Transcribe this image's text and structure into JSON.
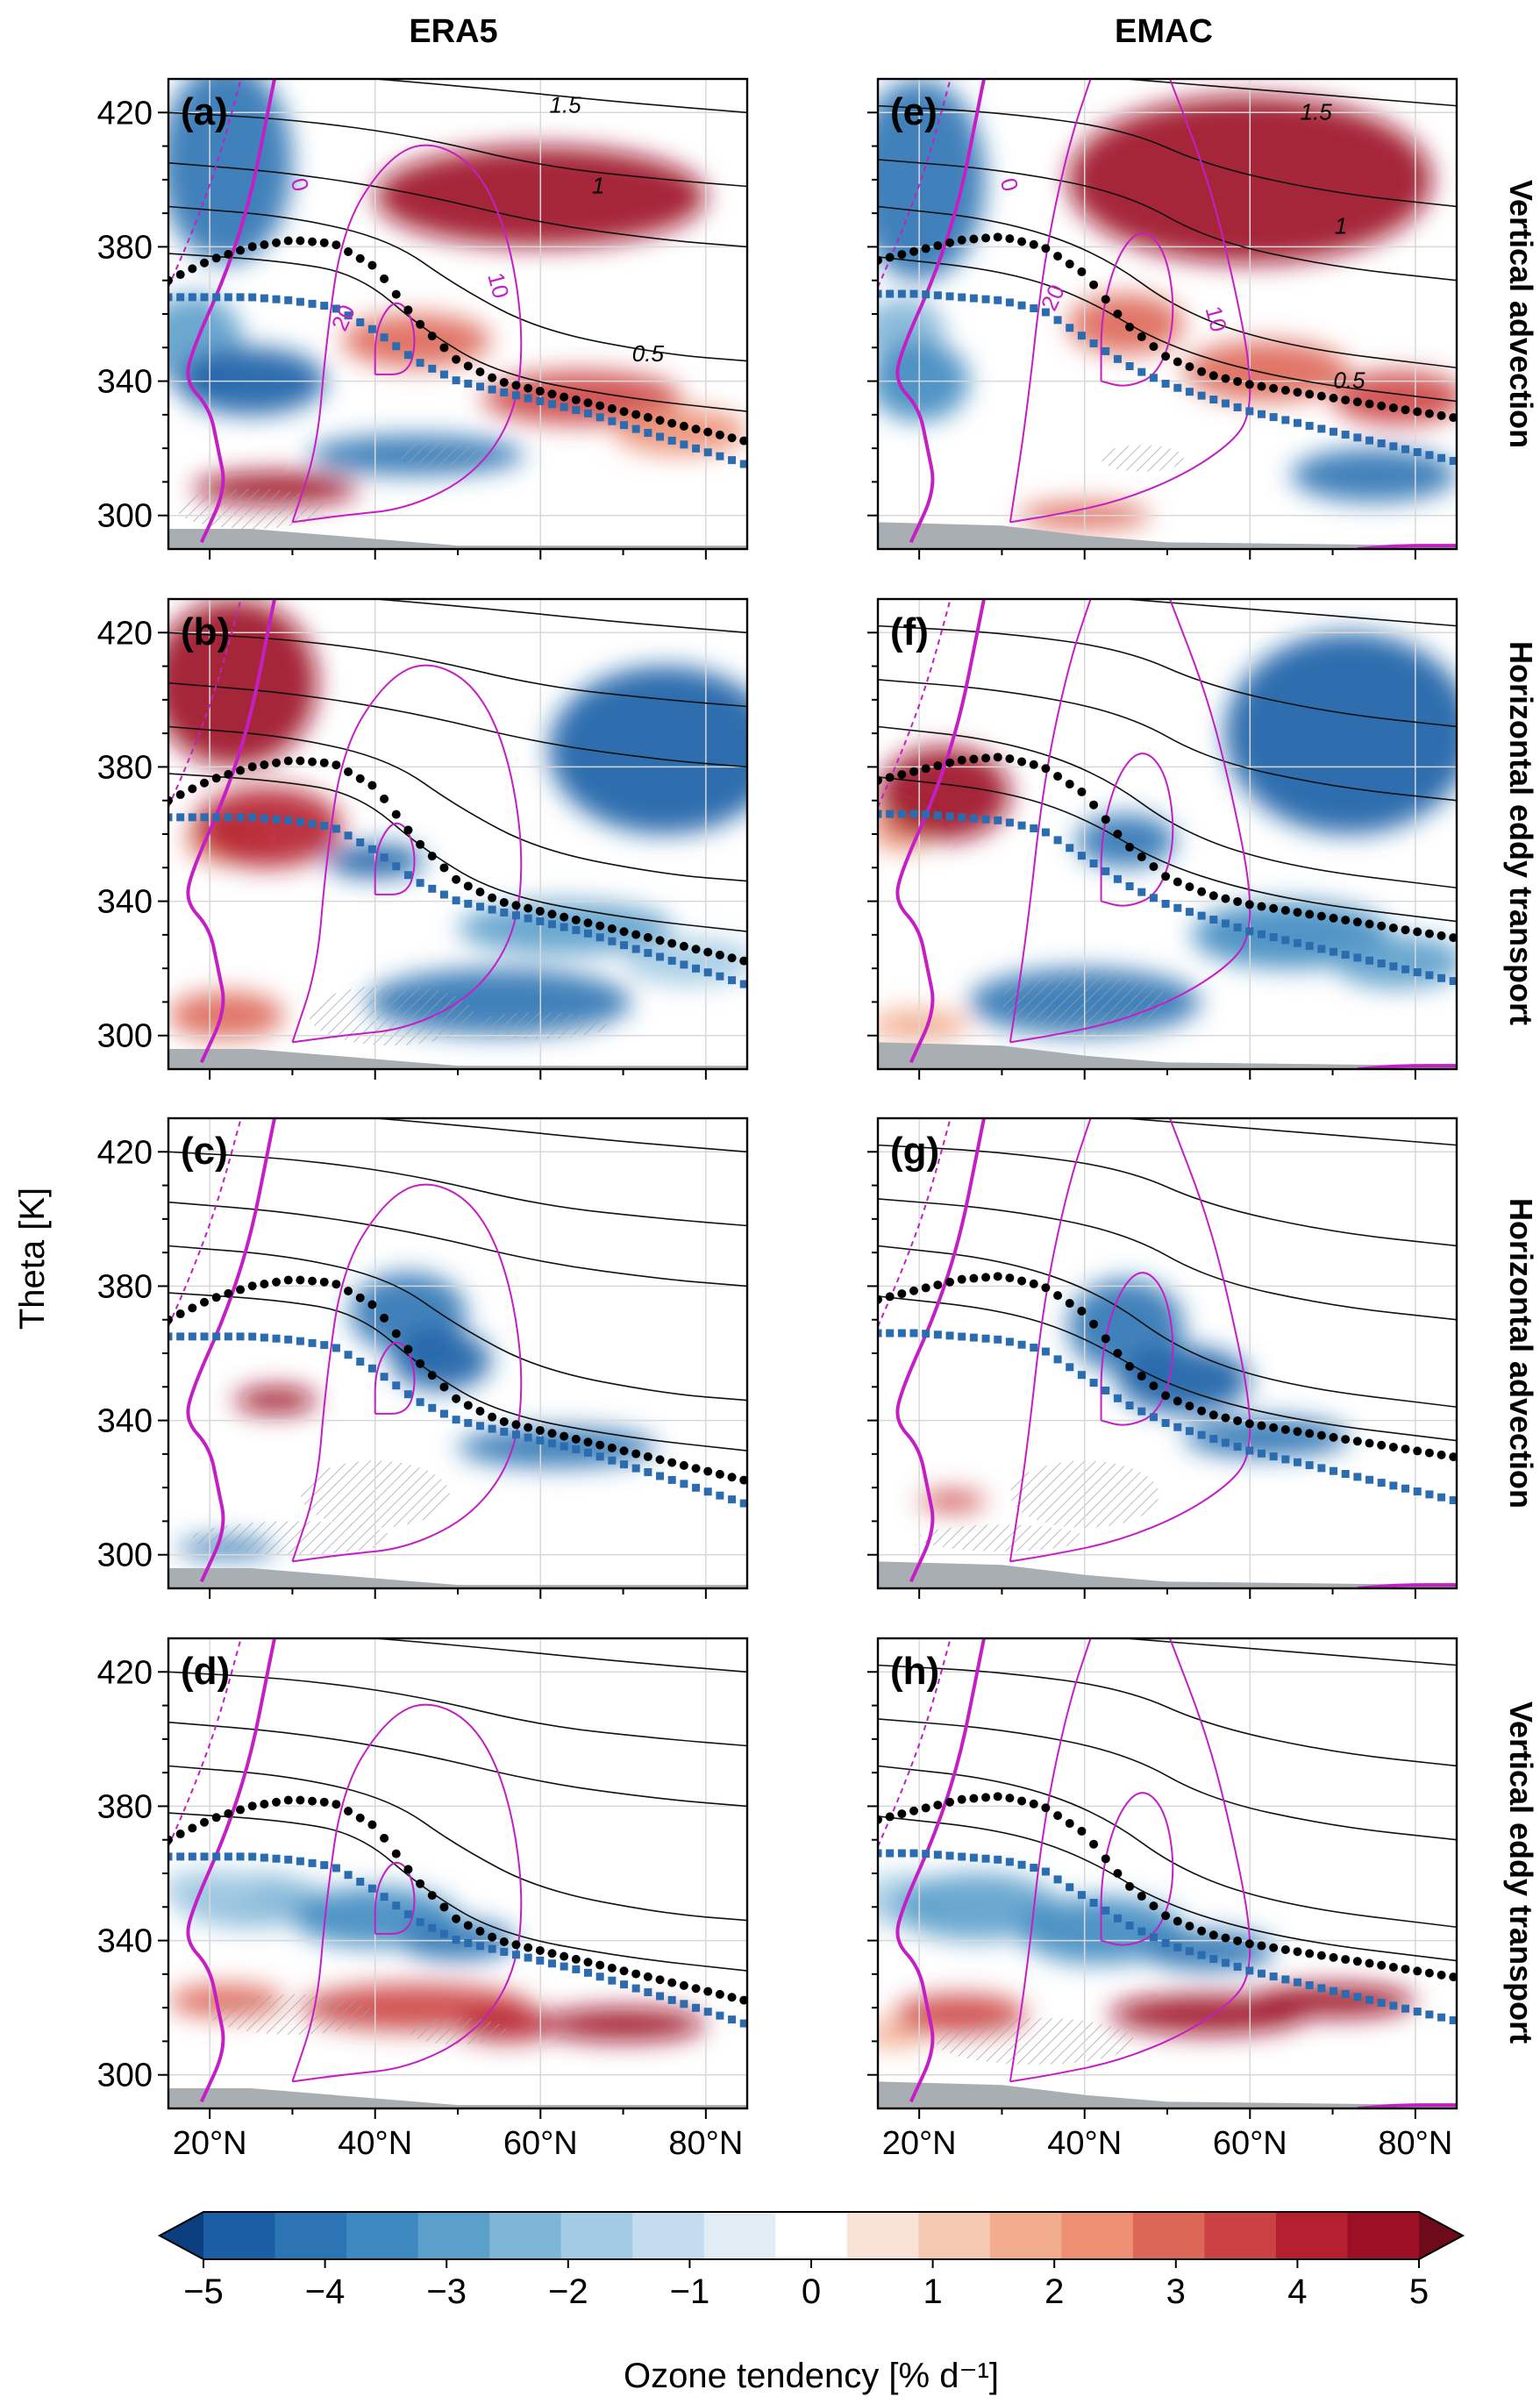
{
  "columns": [
    "ERA5",
    "EMAC"
  ],
  "rows": [
    "Vertical advection",
    "Horizontal eddy transport",
    "Horizontal advection",
    "Vertical eddy transport"
  ],
  "panel_labels": [
    "(a)",
    "(b)",
    "(c)",
    "(d)",
    "(e)",
    "(f)",
    "(g)",
    "(h)"
  ],
  "y_axis_label": "Theta [K]",
  "y_ticks": [
    "300",
    "340",
    "380",
    "420"
  ],
  "x_ticks": [
    "20°N",
    "40°N",
    "60°N",
    "80°N"
  ],
  "contour_labels": {
    "black": [
      "1.5",
      "1",
      "0.5"
    ],
    "magenta": [
      "0",
      "20",
      "10"
    ]
  },
  "colorbar": {
    "label": "Ozone tendency [% d⁻¹]",
    "ticks": [
      "−5",
      "−4",
      "−3",
      "−2",
      "−1",
      "0",
      "1",
      "2",
      "3",
      "4",
      "5"
    ],
    "colors": [
      "#1b5ea6",
      "#2d74b4",
      "#3e8ac0",
      "#5b9fcb",
      "#7fb5d7",
      "#a3cbe3",
      "#c4dced",
      "#e1ecf4",
      "#ffffff",
      "#f9e2d6",
      "#f6cab2",
      "#f2ad8f",
      "#ec8f73",
      "#dd6757",
      "#cc4243",
      "#b51f2f",
      "#9c0f25"
    ]
  },
  "chart_data": [
    {
      "type": "contour",
      "panel": "(a)",
      "dataset": "ERA5",
      "term": "Vertical advection",
      "xlim": [
        15,
        85
      ],
      "ylim": [
        290,
        430
      ],
      "x_unit": "°N",
      "y_unit": "K"
    },
    {
      "type": "contour",
      "panel": "(b)",
      "dataset": "ERA5",
      "term": "Horizontal eddy transport",
      "xlim": [
        15,
        85
      ],
      "ylim": [
        290,
        430
      ]
    },
    {
      "type": "contour",
      "panel": "(c)",
      "dataset": "ERA5",
      "term": "Horizontal advection",
      "xlim": [
        15,
        85
      ],
      "ylim": [
        290,
        430
      ]
    },
    {
      "type": "contour",
      "panel": "(d)",
      "dataset": "ERA5",
      "term": "Vertical eddy transport",
      "xlim": [
        15,
        85
      ],
      "ylim": [
        290,
        430
      ]
    },
    {
      "type": "contour",
      "panel": "(e)",
      "dataset": "EMAC",
      "term": "Vertical advection",
      "xlim": [
        15,
        85
      ],
      "ylim": [
        290,
        430
      ]
    },
    {
      "type": "contour",
      "panel": "(f)",
      "dataset": "EMAC",
      "term": "Horizontal eddy transport",
      "xlim": [
        15,
        85
      ],
      "ylim": [
        290,
        430
      ]
    },
    {
      "type": "contour",
      "panel": "(g)",
      "dataset": "EMAC",
      "term": "Horizontal advection",
      "xlim": [
        15,
        85
      ],
      "ylim": [
        290,
        430
      ]
    },
    {
      "type": "contour",
      "panel": "(h)",
      "dataset": "EMAC",
      "term": "Vertical eddy transport",
      "xlim": [
        15,
        85
      ],
      "ylim": [
        290,
        430
      ]
    }
  ],
  "overlay_lines": {
    "dots_era5": [
      [
        15,
        370
      ],
      [
        20,
        376
      ],
      [
        25,
        380
      ],
      [
        30,
        382
      ],
      [
        35,
        381
      ],
      [
        40,
        374
      ],
      [
        45,
        358
      ],
      [
        50,
        346
      ],
      [
        55,
        340
      ],
      [
        60,
        337
      ],
      [
        65,
        334
      ],
      [
        70,
        331
      ],
      [
        75,
        328
      ],
      [
        80,
        325
      ],
      [
        85,
        322
      ]
    ],
    "squares_era5": [
      [
        15,
        365
      ],
      [
        20,
        365
      ],
      [
        25,
        365
      ],
      [
        30,
        364
      ],
      [
        35,
        362
      ],
      [
        40,
        355
      ],
      [
        45,
        346
      ],
      [
        50,
        340
      ],
      [
        55,
        337
      ],
      [
        60,
        334
      ],
      [
        65,
        331
      ],
      [
        70,
        327
      ],
      [
        75,
        323
      ],
      [
        80,
        319
      ],
      [
        85,
        315
      ]
    ],
    "dots_emac": [
      [
        15,
        376
      ],
      [
        20,
        379
      ],
      [
        25,
        382
      ],
      [
        30,
        383
      ],
      [
        35,
        380
      ],
      [
        40,
        372
      ],
      [
        45,
        357
      ],
      [
        50,
        347
      ],
      [
        55,
        342
      ],
      [
        60,
        339
      ],
      [
        65,
        337
      ],
      [
        70,
        335
      ],
      [
        75,
        333
      ],
      [
        80,
        331
      ],
      [
        85,
        329
      ]
    ],
    "squares_emac": [
      [
        15,
        366
      ],
      [
        20,
        366
      ],
      [
        25,
        365
      ],
      [
        30,
        364
      ],
      [
        35,
        361
      ],
      [
        40,
        353
      ],
      [
        45,
        345
      ],
      [
        50,
        339
      ],
      [
        55,
        335
      ],
      [
        60,
        331
      ],
      [
        65,
        328
      ],
      [
        70,
        325
      ],
      [
        75,
        322
      ],
      [
        80,
        319
      ],
      [
        85,
        316
      ]
    ]
  }
}
